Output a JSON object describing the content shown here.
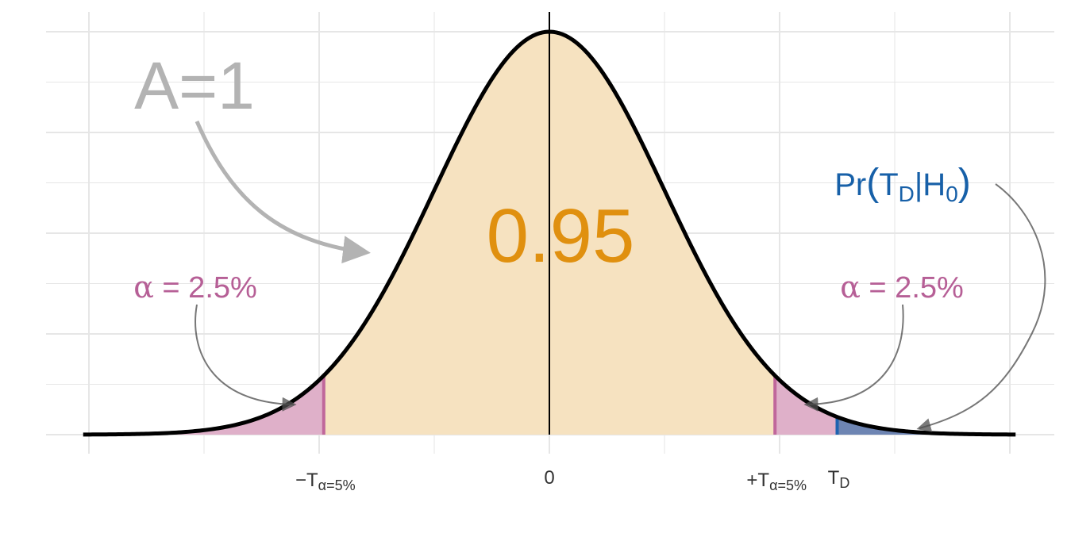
{
  "chart_data": {
    "type": "area",
    "distribution": "standard normal density",
    "xlim": [
      -4.2,
      4.4
    ],
    "ylim": [
      0,
      0.4
    ],
    "grid": true,
    "critical_value": 1.96,
    "observed_statistic": 2.5,
    "regions": [
      {
        "name": "central",
        "from": -1.96,
        "to": 1.96,
        "color": "#f6e2c0"
      },
      {
        "name": "left-tail",
        "from": -4.05,
        "to": -1.96,
        "color": "#dfb0c9"
      },
      {
        "name": "right-tail",
        "from": 1.96,
        "to": 2.5,
        "color": "#dfb0c9"
      },
      {
        "name": "pvalue-tail",
        "from": 2.5,
        "to": 4.05,
        "color": "#6e85b3"
      }
    ],
    "ticks": {
      "minus_crit": {
        "value": -1.96,
        "sign": "−",
        "main": "T",
        "sub": "α=5%"
      },
      "zero": {
        "value": 0,
        "label": "0"
      },
      "plus_crit": {
        "value": 1.96,
        "sign": "+",
        "main": "T",
        "sub": "α=5%"
      },
      "td": {
        "value": 2.5,
        "main": "T",
        "sub": "D"
      }
    },
    "annotations": {
      "area_total": "A=1",
      "central_prob": "0.95",
      "alpha_symbol": "α",
      "alpha_eq": " = 2.5%",
      "pvalue": {
        "pr": "Pr",
        "open": "(",
        "t": "T",
        "t_sub": "D",
        "bar": "|",
        "h": "H",
        "h_sub": "0",
        "close": ")"
      }
    },
    "colors": {
      "curve": "#000000",
      "central": "#f6e2c0",
      "tail": "#dfb0c9",
      "tail_line": "#c0679b",
      "pvalue_fill": "#6e85b3",
      "pvalue_line": "#1e63b0",
      "accent_orange": "#e0900f",
      "alpha_text": "#b65f96",
      "pvalue_text": "#1760a8",
      "area_text": "#b3b3b3",
      "grid": "#e6e6e6",
      "tick_text": "#333333"
    }
  }
}
